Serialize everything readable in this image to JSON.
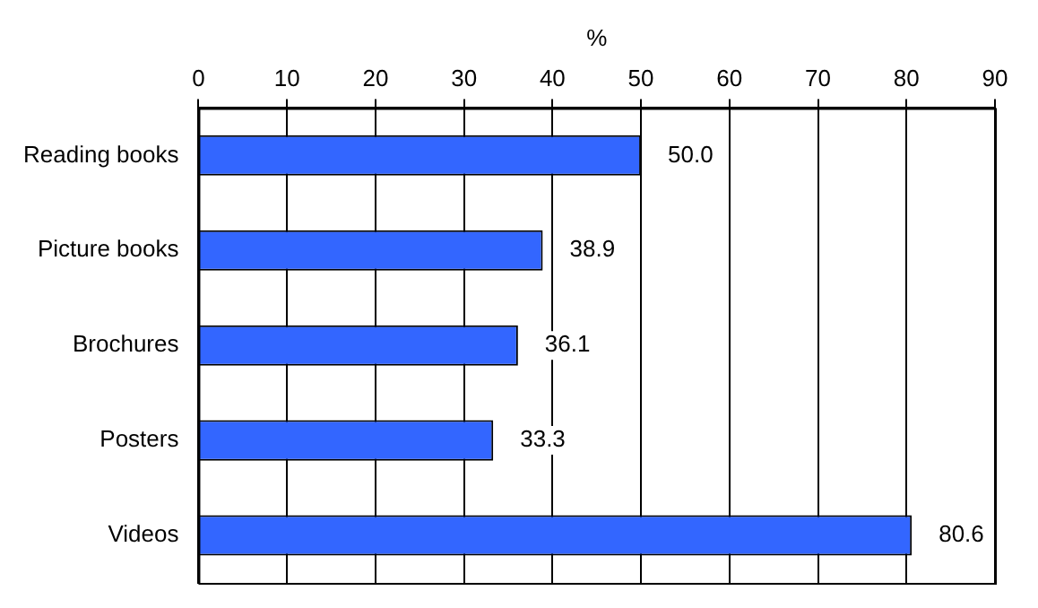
{
  "chart_data": {
    "type": "bar",
    "orientation": "horizontal",
    "xlabel": "%",
    "categories": [
      "Reading books",
      "Picture books",
      "Brochures",
      "Posters",
      "Videos"
    ],
    "values": [
      50.0,
      38.9,
      36.1,
      33.3,
      80.6
    ],
    "value_labels": [
      "50.0",
      "38.9",
      "36.1",
      "33.3",
      "80.6"
    ],
    "color": "#3366ff",
    "xlim": [
      0,
      90
    ],
    "xticks": [
      0,
      10,
      20,
      30,
      40,
      50,
      60,
      70,
      80,
      90
    ],
    "grid": "x",
    "legend": false
  }
}
